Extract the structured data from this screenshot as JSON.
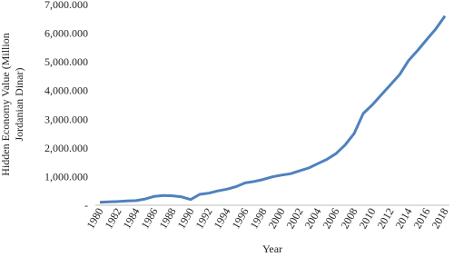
{
  "chart_data": {
    "type": "line",
    "ylabel": [
      "Hidden Economy Value (Million",
      "Jordanian Dinar)"
    ],
    "xlabel": "Year",
    "categories": [
      "1980",
      null,
      "1982",
      null,
      "1984",
      null,
      "1986",
      null,
      "1988",
      null,
      "1990",
      null,
      "1992",
      null,
      "1994",
      null,
      "1996",
      null,
      "1998",
      null,
      "2000",
      null,
      "2002",
      null,
      "2004",
      null,
      "2006",
      null,
      "2008",
      null,
      "2010",
      null,
      "2012",
      null,
      "2014",
      null,
      "2016",
      null,
      "2018"
    ],
    "values": [
      100,
      120,
      130,
      150,
      160,
      220,
      310,
      340,
      330,
      290,
      200,
      380,
      420,
      500,
      560,
      650,
      780,
      830,
      900,
      990,
      1050,
      1100,
      1200,
      1300,
      1450,
      1600,
      1800,
      2100,
      2500,
      3200,
      3500,
      3850,
      4200,
      4550,
      5050,
      5400,
      5780,
      6150,
      6600
    ],
    "color": "#4f81bd",
    "ylim": [
      0,
      7000
    ],
    "yticks": [
      {
        "value": 0,
        "label": "-"
      },
      {
        "value": 1000,
        "label": "1,000.000"
      },
      {
        "value": 2000,
        "label": "2,000.000"
      },
      {
        "value": 3000,
        "label": "3,000.000"
      },
      {
        "value": 4000,
        "label": "4,000.000"
      },
      {
        "value": 5000,
        "label": "5,000.000"
      },
      {
        "value": 6000,
        "label": "6,000.000"
      },
      {
        "value": 7000,
        "label": "7,000.000"
      }
    ]
  }
}
